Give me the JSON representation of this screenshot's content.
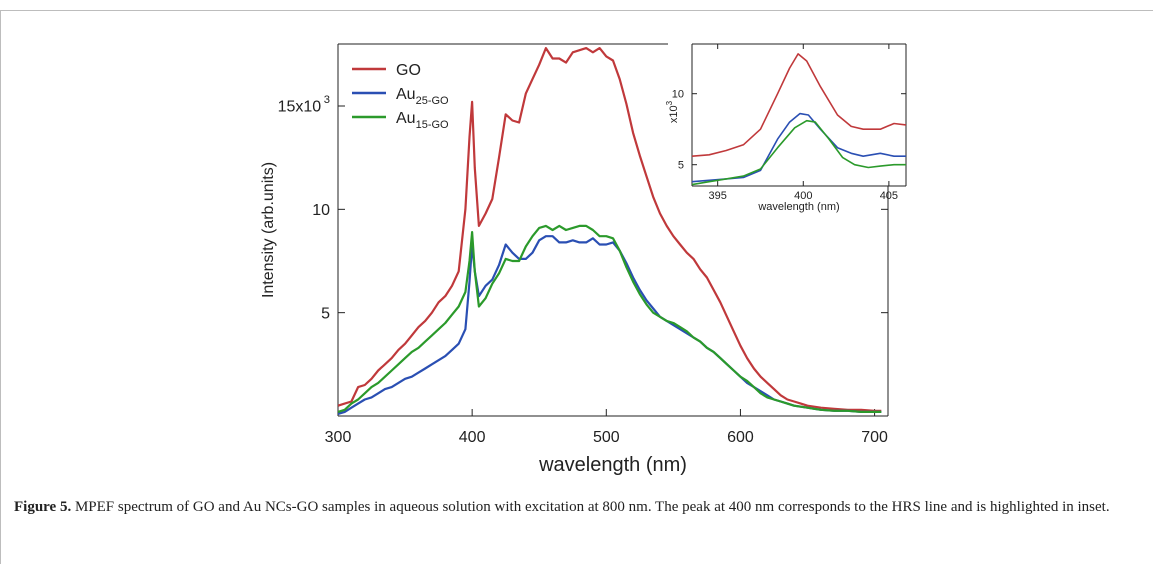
{
  "chart_data": [
    {
      "type": "line",
      "xlabel": "wavelength (nm)",
      "ylabel": "Intensity (arb.units)",
      "xlim": [
        300,
        710
      ],
      "ylim": [
        0,
        18000
      ],
      "x_ticks": [
        300,
        400,
        500,
        600,
        700
      ],
      "x_tick_labels": [
        "300",
        "400",
        "500",
        "600",
        "700"
      ],
      "y_ticks": [
        5000,
        10000,
        15000
      ],
      "y_tick_labels": [
        "5",
        "10",
        "15x10"
      ],
      "y_exponent": "3",
      "legend_position": "top-left",
      "grid": false,
      "series": [
        {
          "name": "GO",
          "legend_base": "GO",
          "legend_sub": "",
          "legend_tail": "",
          "color": "#c0393b",
          "x": [
            300,
            305,
            310,
            315,
            320,
            325,
            330,
            335,
            340,
            345,
            350,
            355,
            360,
            365,
            370,
            375,
            380,
            385,
            390,
            395,
            398,
            400,
            402,
            405,
            410,
            415,
            420,
            425,
            430,
            435,
            440,
            445,
            450,
            455,
            460,
            465,
            470,
            475,
            480,
            485,
            490,
            495,
            500,
            505,
            510,
            515,
            520,
            525,
            530,
            535,
            540,
            545,
            550,
            555,
            560,
            565,
            570,
            575,
            580,
            585,
            590,
            595,
            600,
            605,
            610,
            615,
            620,
            625,
            630,
            635,
            640,
            645,
            650,
            655,
            660,
            670,
            680,
            690,
            700,
            705
          ],
          "y": [
            500,
            600,
            700,
            1400,
            1500,
            1800,
            2200,
            2500,
            2800,
            3200,
            3500,
            3900,
            4300,
            4600,
            5000,
            5500,
            5800,
            6300,
            7000,
            10000,
            13500,
            15200,
            12000,
            9200,
            9800,
            10500,
            12500,
            14600,
            14300,
            14200,
            15600,
            16300,
            17000,
            17800,
            17300,
            17300,
            17100,
            17600,
            17700,
            17800,
            17600,
            17800,
            17400,
            17200,
            16300,
            15100,
            13700,
            12600,
            11600,
            10600,
            9800,
            9200,
            8700,
            8300,
            7900,
            7600,
            7100,
            6700,
            6100,
            5500,
            4800,
            4100,
            3400,
            2800,
            2300,
            1900,
            1600,
            1300,
            1000,
            800,
            700,
            600,
            500,
            450,
            400,
            350,
            300,
            300,
            250,
            250
          ]
        },
        {
          "name": "Au25-GO",
          "legend_base": "Au",
          "legend_sub": "25",
          "legend_tail": "-GO",
          "color": "#2a4fb3",
          "x": [
            300,
            305,
            310,
            315,
            320,
            325,
            330,
            335,
            340,
            345,
            350,
            355,
            360,
            365,
            370,
            375,
            380,
            385,
            390,
            395,
            398,
            400,
            402,
            405,
            410,
            415,
            420,
            425,
            430,
            435,
            440,
            445,
            450,
            455,
            460,
            465,
            470,
            475,
            480,
            485,
            490,
            495,
            500,
            505,
            510,
            515,
            520,
            525,
            530,
            535,
            540,
            545,
            550,
            555,
            560,
            565,
            570,
            575,
            580,
            585,
            590,
            595,
            600,
            605,
            610,
            615,
            620,
            625,
            630,
            635,
            640,
            645,
            650,
            655,
            660,
            670,
            680,
            690,
            700,
            705
          ],
          "y": [
            100,
            200,
            400,
            600,
            800,
            900,
            1100,
            1300,
            1400,
            1600,
            1800,
            1900,
            2100,
            2300,
            2500,
            2700,
            2900,
            3200,
            3500,
            4200,
            6500,
            8300,
            7000,
            5800,
            6300,
            6600,
            7300,
            8300,
            7900,
            7600,
            7600,
            7900,
            8500,
            8700,
            8700,
            8400,
            8400,
            8500,
            8400,
            8400,
            8600,
            8300,
            8300,
            8400,
            8000,
            7400,
            6700,
            6100,
            5600,
            5200,
            4800,
            4600,
            4400,
            4200,
            4000,
            3800,
            3600,
            3300,
            3100,
            2800,
            2500,
            2200,
            1900,
            1600,
            1400,
            1200,
            1000,
            800,
            700,
            600,
            500,
            450,
            400,
            350,
            300,
            250,
            250,
            200,
            200,
            200
          ]
        },
        {
          "name": "Au15-GO",
          "legend_base": "Au",
          "legend_sub": "15",
          "legend_tail": "-GO",
          "color": "#2b9a2b",
          "x": [
            300,
            305,
            310,
            315,
            320,
            325,
            330,
            335,
            340,
            345,
            350,
            355,
            360,
            365,
            370,
            375,
            380,
            385,
            390,
            395,
            398,
            400,
            402,
            405,
            410,
            415,
            420,
            425,
            430,
            435,
            440,
            445,
            450,
            455,
            460,
            465,
            470,
            475,
            480,
            485,
            490,
            495,
            500,
            505,
            510,
            515,
            520,
            525,
            530,
            535,
            540,
            545,
            550,
            555,
            560,
            565,
            570,
            575,
            580,
            585,
            590,
            595,
            600,
            605,
            610,
            615,
            620,
            625,
            630,
            635,
            640,
            645,
            650,
            655,
            660,
            670,
            680,
            690,
            700,
            705
          ],
          "y": [
            200,
            300,
            600,
            800,
            1100,
            1400,
            1600,
            1900,
            2200,
            2500,
            2800,
            3100,
            3300,
            3600,
            3900,
            4200,
            4500,
            4900,
            5300,
            6000,
            7500,
            8900,
            7000,
            5300,
            5700,
            6400,
            6900,
            7600,
            7500,
            7500,
            8200,
            8700,
            9100,
            9200,
            9000,
            9200,
            9000,
            9100,
            9200,
            9200,
            9000,
            8700,
            8700,
            8600,
            8000,
            7200,
            6500,
            5900,
            5400,
            5000,
            4800,
            4600,
            4500,
            4300,
            4100,
            3800,
            3600,
            3300,
            3100,
            2800,
            2500,
            2200,
            1900,
            1700,
            1400,
            1100,
            900,
            800,
            700,
            600,
            500,
            450,
            400,
            350,
            300,
            250,
            250,
            200,
            200,
            200
          ]
        }
      ]
    },
    {
      "type": "line",
      "xlabel": "wavelength (nm)",
      "ylabel": "x10",
      "y_exponent": "3",
      "xlim": [
        393.5,
        406
      ],
      "ylim": [
        3.5,
        13.5
      ],
      "x_ticks": [
        395,
        400,
        405
      ],
      "x_tick_labels": [
        "395",
        "400",
        "405"
      ],
      "y_ticks": [
        5,
        10
      ],
      "y_tick_labels": [
        "5",
        "10"
      ],
      "series": [
        {
          "name": "GO",
          "color": "#c0393b",
          "x": [
            393.5,
            394.5,
            395.5,
            396.5,
            397.5,
            398.5,
            399.2,
            399.7,
            400.2,
            401,
            402,
            402.8,
            403.5,
            404.5,
            405.3,
            406
          ],
          "y": [
            5.6,
            5.7,
            6.0,
            6.4,
            7.5,
            10.0,
            11.8,
            12.8,
            12.3,
            10.5,
            8.5,
            7.7,
            7.5,
            7.5,
            7.9,
            7.8
          ]
        },
        {
          "name": "Au25-GO",
          "color": "#2a4fb3",
          "x": [
            393.5,
            394.5,
            395.5,
            396.5,
            397.5,
            398.5,
            399.2,
            399.8,
            400.3,
            401,
            402,
            402.8,
            403.5,
            404.5,
            405.3,
            406
          ],
          "y": [
            3.8,
            3.9,
            4.0,
            4.1,
            4.6,
            6.8,
            8.0,
            8.6,
            8.5,
            7.5,
            6.2,
            5.8,
            5.6,
            5.8,
            5.6,
            5.6
          ]
        },
        {
          "name": "Au15-GO",
          "color": "#2b9a2b",
          "x": [
            393.5,
            394.5,
            395.5,
            396.5,
            397.5,
            398.5,
            399.5,
            400.2,
            400.7,
            401.5,
            402.3,
            403,
            403.8,
            404.5,
            405.3,
            406
          ],
          "y": [
            3.6,
            3.8,
            4.0,
            4.2,
            4.7,
            6.2,
            7.6,
            8.1,
            8.0,
            6.8,
            5.5,
            5.0,
            4.8,
            4.9,
            5.0,
            5.0
          ]
        }
      ]
    }
  ],
  "caption": {
    "label": "Figure 5.",
    "text": " MPEF spectrum of GO and Au NCs-GO samples in aqueous solution with excitation at 800 nm. The peak at 400 nm corresponds to the HRS line and is highlighted in inset."
  }
}
